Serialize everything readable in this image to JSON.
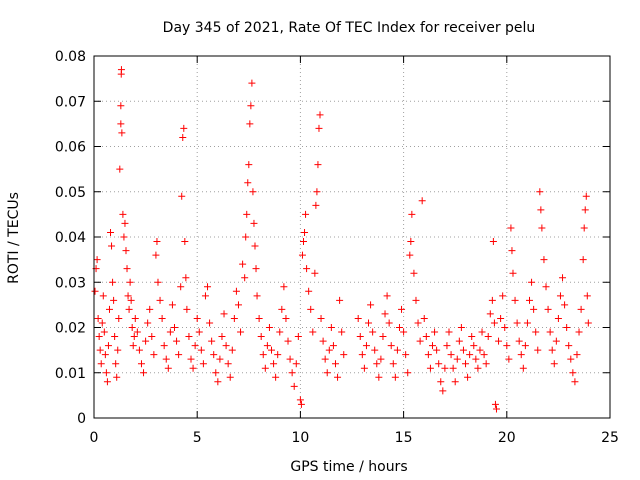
{
  "chart_data": {
    "type": "scatter",
    "title": "Day 345 of 2021, Rate Of TEC Index for receiver pelu",
    "xlabel": "GPS time / hours",
    "ylabel": "ROTI / TECUs",
    "xlim": [
      0,
      25
    ],
    "ylim": [
      0,
      0.08
    ],
    "xticks": [
      0,
      5,
      10,
      15,
      20,
      25
    ],
    "xtick_labels": [
      "0",
      "5",
      "10",
      "15",
      "20",
      "25"
    ],
    "yticks": [
      0,
      0.01,
      0.02,
      0.03,
      0.04,
      0.05,
      0.06,
      0.07,
      0.08
    ],
    "ytick_labels": [
      "0",
      "0.01",
      "0.02",
      "0.03",
      "0.04",
      "0.05",
      "0.06",
      "0.07",
      "0.08"
    ],
    "grid": true,
    "marker": "+",
    "color": "#ff0000",
    "series": [
      {
        "name": "ROTI",
        "points": [
          [
            0.05,
            0.028
          ],
          [
            0.1,
            0.033
          ],
          [
            0.15,
            0.035
          ],
          [
            0.2,
            0.022
          ],
          [
            0.25,
            0.018
          ],
          [
            0.3,
            0.015
          ],
          [
            0.35,
            0.012
          ],
          [
            0.4,
            0.021
          ],
          [
            0.45,
            0.027
          ],
          [
            0.5,
            0.019
          ],
          [
            0.55,
            0.014
          ],
          [
            0.6,
            0.01
          ],
          [
            0.65,
            0.008
          ],
          [
            0.7,
            0.016
          ],
          [
            0.75,
            0.024
          ],
          [
            0.8,
            0.041
          ],
          [
            0.85,
            0.038
          ],
          [
            0.9,
            0.03
          ],
          [
            0.95,
            0.026
          ],
          [
            1.0,
            0.018
          ],
          [
            1.05,
            0.012
          ],
          [
            1.1,
            0.009
          ],
          [
            1.15,
            0.015
          ],
          [
            1.2,
            0.022
          ],
          [
            1.25,
            0.055
          ],
          [
            1.3,
            0.065
          ],
          [
            1.3,
            0.069
          ],
          [
            1.32,
            0.076
          ],
          [
            1.33,
            0.077
          ],
          [
            1.35,
            0.063
          ],
          [
            1.4,
            0.045
          ],
          [
            1.45,
            0.04
          ],
          [
            1.5,
            0.043
          ],
          [
            1.55,
            0.037
          ],
          [
            1.6,
            0.033
          ],
          [
            1.65,
            0.027
          ],
          [
            1.7,
            0.024
          ],
          [
            1.75,
            0.03
          ],
          [
            1.8,
            0.026
          ],
          [
            1.85,
            0.02
          ],
          [
            1.9,
            0.016
          ],
          [
            1.95,
            0.018
          ],
          [
            2.0,
            0.022
          ],
          [
            2.1,
            0.019
          ],
          [
            2.2,
            0.015
          ],
          [
            2.3,
            0.012
          ],
          [
            2.4,
            0.01
          ],
          [
            2.5,
            0.017
          ],
          [
            2.6,
            0.021
          ],
          [
            2.7,
            0.024
          ],
          [
            2.8,
            0.018
          ],
          [
            2.9,
            0.014
          ],
          [
            3.0,
            0.036
          ],
          [
            3.05,
            0.039
          ],
          [
            3.1,
            0.03
          ],
          [
            3.2,
            0.026
          ],
          [
            3.3,
            0.022
          ],
          [
            3.4,
            0.016
          ],
          [
            3.5,
            0.013
          ],
          [
            3.6,
            0.011
          ],
          [
            3.7,
            0.019
          ],
          [
            3.8,
            0.025
          ],
          [
            3.9,
            0.02
          ],
          [
            4.0,
            0.017
          ],
          [
            4.1,
            0.014
          ],
          [
            4.2,
            0.029
          ],
          [
            4.25,
            0.049
          ],
          [
            4.3,
            0.062
          ],
          [
            4.35,
            0.064
          ],
          [
            4.4,
            0.039
          ],
          [
            4.45,
            0.031
          ],
          [
            4.5,
            0.024
          ],
          [
            4.6,
            0.018
          ],
          [
            4.7,
            0.013
          ],
          [
            4.8,
            0.011
          ],
          [
            4.9,
            0.016
          ],
          [
            5.0,
            0.022
          ],
          [
            5.1,
            0.019
          ],
          [
            5.2,
            0.015
          ],
          [
            5.3,
            0.012
          ],
          [
            5.4,
            0.027
          ],
          [
            5.5,
            0.029
          ],
          [
            5.6,
            0.021
          ],
          [
            5.7,
            0.017
          ],
          [
            5.8,
            0.014
          ],
          [
            5.9,
            0.01
          ],
          [
            6.0,
            0.008
          ],
          [
            6.1,
            0.013
          ],
          [
            6.2,
            0.018
          ],
          [
            6.3,
            0.023
          ],
          [
            6.4,
            0.016
          ],
          [
            6.5,
            0.012
          ],
          [
            6.6,
            0.009
          ],
          [
            6.7,
            0.015
          ],
          [
            6.8,
            0.022
          ],
          [
            6.9,
            0.028
          ],
          [
            7.0,
            0.025
          ],
          [
            7.1,
            0.019
          ],
          [
            7.2,
            0.034
          ],
          [
            7.3,
            0.031
          ],
          [
            7.35,
            0.04
          ],
          [
            7.4,
            0.045
          ],
          [
            7.45,
            0.052
          ],
          [
            7.5,
            0.056
          ],
          [
            7.55,
            0.065
          ],
          [
            7.6,
            0.069
          ],
          [
            7.65,
            0.074
          ],
          [
            7.7,
            0.05
          ],
          [
            7.75,
            0.043
          ],
          [
            7.8,
            0.038
          ],
          [
            7.85,
            0.033
          ],
          [
            7.9,
            0.027
          ],
          [
            8.0,
            0.022
          ],
          [
            8.1,
            0.018
          ],
          [
            8.2,
            0.014
          ],
          [
            8.3,
            0.011
          ],
          [
            8.4,
            0.016
          ],
          [
            8.5,
            0.02
          ],
          [
            8.6,
            0.015
          ],
          [
            8.7,
            0.012
          ],
          [
            8.8,
            0.009
          ],
          [
            8.9,
            0.014
          ],
          [
            9.0,
            0.019
          ],
          [
            9.1,
            0.024
          ],
          [
            9.2,
            0.029
          ],
          [
            9.3,
            0.022
          ],
          [
            9.4,
            0.017
          ],
          [
            9.5,
            0.013
          ],
          [
            9.6,
            0.01
          ],
          [
            9.7,
            0.007
          ],
          [
            9.8,
            0.012
          ],
          [
            9.9,
            0.018
          ],
          [
            10.0,
            0.004
          ],
          [
            10.05,
            0.003
          ],
          [
            10.1,
            0.036
          ],
          [
            10.15,
            0.039
          ],
          [
            10.2,
            0.041
          ],
          [
            10.25,
            0.045
          ],
          [
            10.3,
            0.033
          ],
          [
            10.4,
            0.028
          ],
          [
            10.5,
            0.024
          ],
          [
            10.6,
            0.019
          ],
          [
            10.7,
            0.032
          ],
          [
            10.75,
            0.047
          ],
          [
            10.8,
            0.05
          ],
          [
            10.85,
            0.056
          ],
          [
            10.9,
            0.064
          ],
          [
            10.95,
            0.067
          ],
          [
            11.0,
            0.022
          ],
          [
            11.1,
            0.017
          ],
          [
            11.2,
            0.013
          ],
          [
            11.3,
            0.01
          ],
          [
            11.4,
            0.015
          ],
          [
            11.5,
            0.02
          ],
          [
            11.6,
            0.016
          ],
          [
            11.7,
            0.012
          ],
          [
            11.8,
            0.009
          ],
          [
            11.9,
            0.026
          ],
          [
            12.0,
            0.019
          ],
          [
            12.1,
            0.014
          ],
          [
            12.8,
            0.022
          ],
          [
            12.9,
            0.018
          ],
          [
            13.0,
            0.014
          ],
          [
            13.1,
            0.011
          ],
          [
            13.2,
            0.016
          ],
          [
            13.3,
            0.021
          ],
          [
            13.4,
            0.025
          ],
          [
            13.5,
            0.019
          ],
          [
            13.6,
            0.015
          ],
          [
            13.7,
            0.012
          ],
          [
            13.8,
            0.009
          ],
          [
            13.9,
            0.013
          ],
          [
            14.0,
            0.018
          ],
          [
            14.1,
            0.023
          ],
          [
            14.2,
            0.027
          ],
          [
            14.3,
            0.021
          ],
          [
            14.4,
            0.016
          ],
          [
            14.5,
            0.012
          ],
          [
            14.6,
            0.009
          ],
          [
            14.7,
            0.015
          ],
          [
            14.8,
            0.02
          ],
          [
            14.9,
            0.024
          ],
          [
            15.0,
            0.019
          ],
          [
            15.1,
            0.014
          ],
          [
            15.2,
            0.01
          ],
          [
            15.3,
            0.036
          ],
          [
            15.35,
            0.039
          ],
          [
            15.4,
            0.045
          ],
          [
            15.5,
            0.032
          ],
          [
            15.6,
            0.026
          ],
          [
            15.7,
            0.021
          ],
          [
            15.8,
            0.017
          ],
          [
            15.9,
            0.048
          ],
          [
            16.0,
            0.022
          ],
          [
            16.1,
            0.018
          ],
          [
            16.2,
            0.014
          ],
          [
            16.3,
            0.011
          ],
          [
            16.4,
            0.016
          ],
          [
            16.5,
            0.019
          ],
          [
            16.6,
            0.015
          ],
          [
            16.7,
            0.012
          ],
          [
            16.8,
            0.008
          ],
          [
            16.9,
            0.006
          ],
          [
            17.0,
            0.011
          ],
          [
            17.1,
            0.016
          ],
          [
            17.2,
            0.019
          ],
          [
            17.3,
            0.014
          ],
          [
            17.4,
            0.011
          ],
          [
            17.5,
            0.008
          ],
          [
            17.6,
            0.013
          ],
          [
            17.7,
            0.017
          ],
          [
            17.8,
            0.02
          ],
          [
            17.9,
            0.015
          ],
          [
            18.0,
            0.012
          ],
          [
            18.1,
            0.009
          ],
          [
            18.2,
            0.014
          ],
          [
            18.3,
            0.018
          ],
          [
            18.4,
            0.016
          ],
          [
            18.5,
            0.013
          ],
          [
            18.6,
            0.011
          ],
          [
            18.7,
            0.015
          ],
          [
            18.8,
            0.019
          ],
          [
            18.9,
            0.014
          ],
          [
            19.0,
            0.012
          ],
          [
            19.1,
            0.018
          ],
          [
            19.2,
            0.023
          ],
          [
            19.3,
            0.026
          ],
          [
            19.35,
            0.039
          ],
          [
            19.4,
            0.021
          ],
          [
            19.45,
            0.003
          ],
          [
            19.5,
            0.002
          ],
          [
            19.6,
            0.017
          ],
          [
            19.7,
            0.022
          ],
          [
            19.8,
            0.027
          ],
          [
            19.9,
            0.02
          ],
          [
            20.0,
            0.016
          ],
          [
            20.1,
            0.013
          ],
          [
            20.2,
            0.042
          ],
          [
            20.25,
            0.037
          ],
          [
            20.3,
            0.032
          ],
          [
            20.4,
            0.026
          ],
          [
            20.5,
            0.021
          ],
          [
            20.6,
            0.017
          ],
          [
            20.7,
            0.014
          ],
          [
            20.8,
            0.011
          ],
          [
            20.9,
            0.016
          ],
          [
            21.0,
            0.021
          ],
          [
            21.1,
            0.026
          ],
          [
            21.2,
            0.03
          ],
          [
            21.3,
            0.024
          ],
          [
            21.4,
            0.019
          ],
          [
            21.5,
            0.015
          ],
          [
            21.6,
            0.05
          ],
          [
            21.65,
            0.046
          ],
          [
            21.7,
            0.042
          ],
          [
            21.8,
            0.035
          ],
          [
            21.9,
            0.029
          ],
          [
            22.0,
            0.024
          ],
          [
            22.1,
            0.019
          ],
          [
            22.2,
            0.015
          ],
          [
            22.3,
            0.012
          ],
          [
            22.4,
            0.017
          ],
          [
            22.5,
            0.022
          ],
          [
            22.6,
            0.027
          ],
          [
            22.7,
            0.031
          ],
          [
            22.8,
            0.025
          ],
          [
            22.9,
            0.02
          ],
          [
            23.0,
            0.016
          ],
          [
            23.1,
            0.013
          ],
          [
            23.2,
            0.01
          ],
          [
            23.3,
            0.008
          ],
          [
            23.4,
            0.014
          ],
          [
            23.5,
            0.019
          ],
          [
            23.6,
            0.024
          ],
          [
            23.7,
            0.035
          ],
          [
            23.75,
            0.042
          ],
          [
            23.8,
            0.046
          ],
          [
            23.85,
            0.049
          ],
          [
            23.9,
            0.027
          ],
          [
            23.95,
            0.021
          ]
        ]
      }
    ]
  }
}
